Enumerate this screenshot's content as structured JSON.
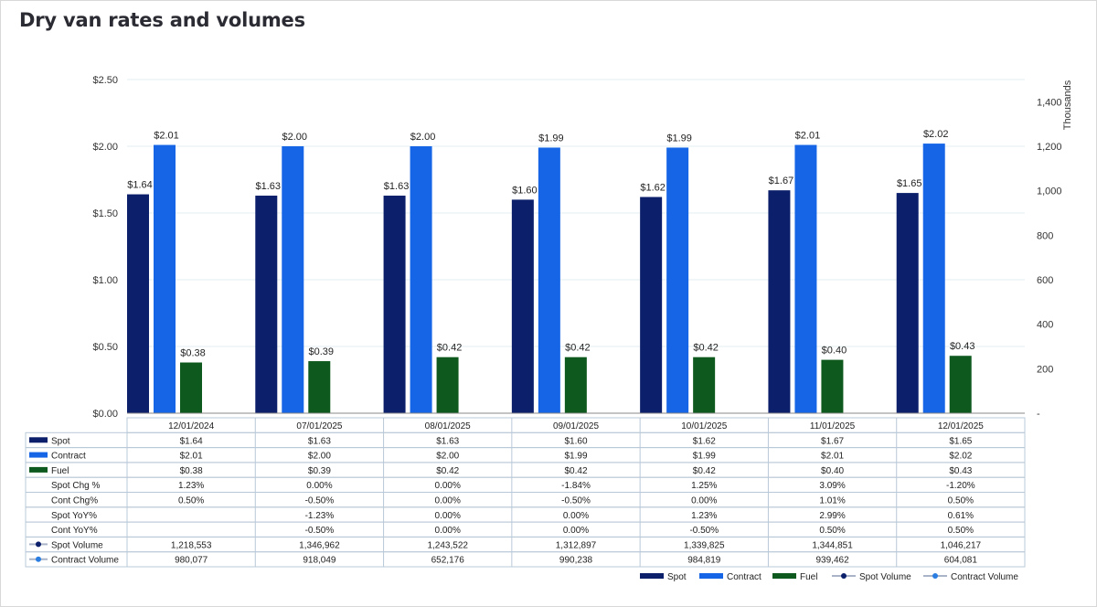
{
  "title": "Dry van rates and volumes",
  "colors": {
    "spot": "#0b1f6b",
    "contract": "#1565e6",
    "fuel": "#0e5a1e",
    "spot_volume": "#0b1f6b",
    "contract_volume": "#2a7de1",
    "line": "#aab4c8",
    "grid": "#e3eef0",
    "table_border": "#b9c8d8"
  },
  "chart_data": {
    "type": "bar",
    "categories": [
      "12/01/2024",
      "07/01/2025",
      "08/01/2025",
      "09/01/2025",
      "10/01/2025",
      "11/01/2025",
      "12/01/2025"
    ],
    "y_left": {
      "ylim": [
        0,
        2.5
      ],
      "ticks": [
        "$0.00",
        "$0.50",
        "$1.00",
        "$1.50",
        "$2.00",
        "$2.50"
      ],
      "tick_values": [
        0,
        0.5,
        1.0,
        1.5,
        2.0,
        2.5
      ]
    },
    "y_right": {
      "label": "Thousands",
      "ylim": [
        0,
        1500
      ],
      "ticks": [
        "-",
        "200",
        "400",
        "600",
        "800",
        "1,000",
        "1,200",
        "1,400"
      ],
      "tick_values": [
        0,
        200,
        400,
        600,
        800,
        1000,
        1200,
        1400
      ]
    },
    "series": [
      {
        "name": "Spot",
        "kind": "bar",
        "values": [
          1.64,
          1.63,
          1.63,
          1.6,
          1.62,
          1.67,
          1.65
        ],
        "labels": [
          "$1.64",
          "$1.63",
          "$1.63",
          "$1.60",
          "$1.62",
          "$1.67",
          "$1.65"
        ]
      },
      {
        "name": "Contract",
        "kind": "bar",
        "values": [
          2.01,
          2.0,
          2.0,
          1.99,
          1.99,
          2.01,
          2.02
        ],
        "labels": [
          "$2.01",
          "$2.00",
          "$2.00",
          "$1.99",
          "$1.99",
          "$2.01",
          "$2.02"
        ]
      },
      {
        "name": "Fuel",
        "kind": "bar",
        "values": [
          0.38,
          0.39,
          0.42,
          0.42,
          0.42,
          0.4,
          0.43
        ],
        "labels": [
          "$0.38",
          "$0.39",
          "$0.42",
          "$0.42",
          "$0.42",
          "$0.40",
          "$0.43"
        ]
      },
      {
        "name": "Spot Volume",
        "kind": "line",
        "axis": "right",
        "values": [
          1218553,
          1346962,
          1243522,
          1312897,
          1339825,
          1344851,
          1046217
        ]
      },
      {
        "name": "Contract Volume",
        "kind": "line",
        "axis": "right",
        "values": [
          980077,
          918049,
          652176,
          990238,
          984819,
          939462,
          604081
        ]
      }
    ],
    "grid": true,
    "legend": "bottom-right"
  },
  "table": {
    "header": [
      "12/01/2024",
      "07/01/2025",
      "08/01/2025",
      "09/01/2025",
      "10/01/2025",
      "11/01/2025",
      "12/01/2025"
    ],
    "rows": [
      {
        "label": "Spot",
        "key": "spot",
        "marker": "box",
        "cells": [
          "$1.64",
          "$1.63",
          "$1.63",
          "$1.60",
          "$1.62",
          "$1.67",
          "$1.65"
        ]
      },
      {
        "label": "Contract",
        "key": "contract",
        "marker": "box",
        "cells": [
          "$2.01",
          "$2.00",
          "$2.00",
          "$1.99",
          "$1.99",
          "$2.01",
          "$2.02"
        ]
      },
      {
        "label": "Fuel",
        "key": "fuel",
        "marker": "box",
        "cells": [
          "$0.38",
          "$0.39",
          "$0.42",
          "$0.42",
          "$0.42",
          "$0.40",
          "$0.43"
        ]
      },
      {
        "label": "Spot Chg %",
        "key": "",
        "marker": "none",
        "cells": [
          "1.23%",
          "0.00%",
          "0.00%",
          "-1.84%",
          "1.25%",
          "3.09%",
          "-1.20%"
        ]
      },
      {
        "label": "Cont Chg%",
        "key": "",
        "marker": "none",
        "cells": [
          "0.50%",
          "-0.50%",
          "0.00%",
          "-0.50%",
          "0.00%",
          "1.01%",
          "0.50%"
        ]
      },
      {
        "label": "Spot YoY%",
        "key": "",
        "marker": "none",
        "cells": [
          "",
          "-1.23%",
          "0.00%",
          "0.00%",
          "1.23%",
          "2.99%",
          "0.61%"
        ]
      },
      {
        "label": "Cont YoY%",
        "key": "",
        "marker": "none",
        "cells": [
          "",
          "-0.50%",
          "0.00%",
          "0.00%",
          "-0.50%",
          "0.50%",
          "0.50%"
        ]
      },
      {
        "label": "Spot Volume",
        "key": "spot_volume",
        "marker": "line",
        "cells": [
          "1,218,553",
          "1,346,962",
          "1,243,522",
          "1,312,897",
          "1,339,825",
          "1,344,851",
          "1,046,217"
        ]
      },
      {
        "label": "Contract Volume",
        "key": "contract_volume",
        "marker": "line",
        "cells": [
          "980,077",
          "918,049",
          "652,176",
          "990,238",
          "984,819",
          "939,462",
          "604,081"
        ]
      }
    ]
  },
  "legend": [
    {
      "label": "Spot",
      "key": "spot",
      "marker": "box"
    },
    {
      "label": "Contract",
      "key": "contract",
      "marker": "box"
    },
    {
      "label": "Fuel",
      "key": "fuel",
      "marker": "box"
    },
    {
      "label": "Spot Volume",
      "key": "spot_volume",
      "marker": "line"
    },
    {
      "label": "Contract Volume",
      "key": "contract_volume",
      "marker": "line"
    }
  ]
}
